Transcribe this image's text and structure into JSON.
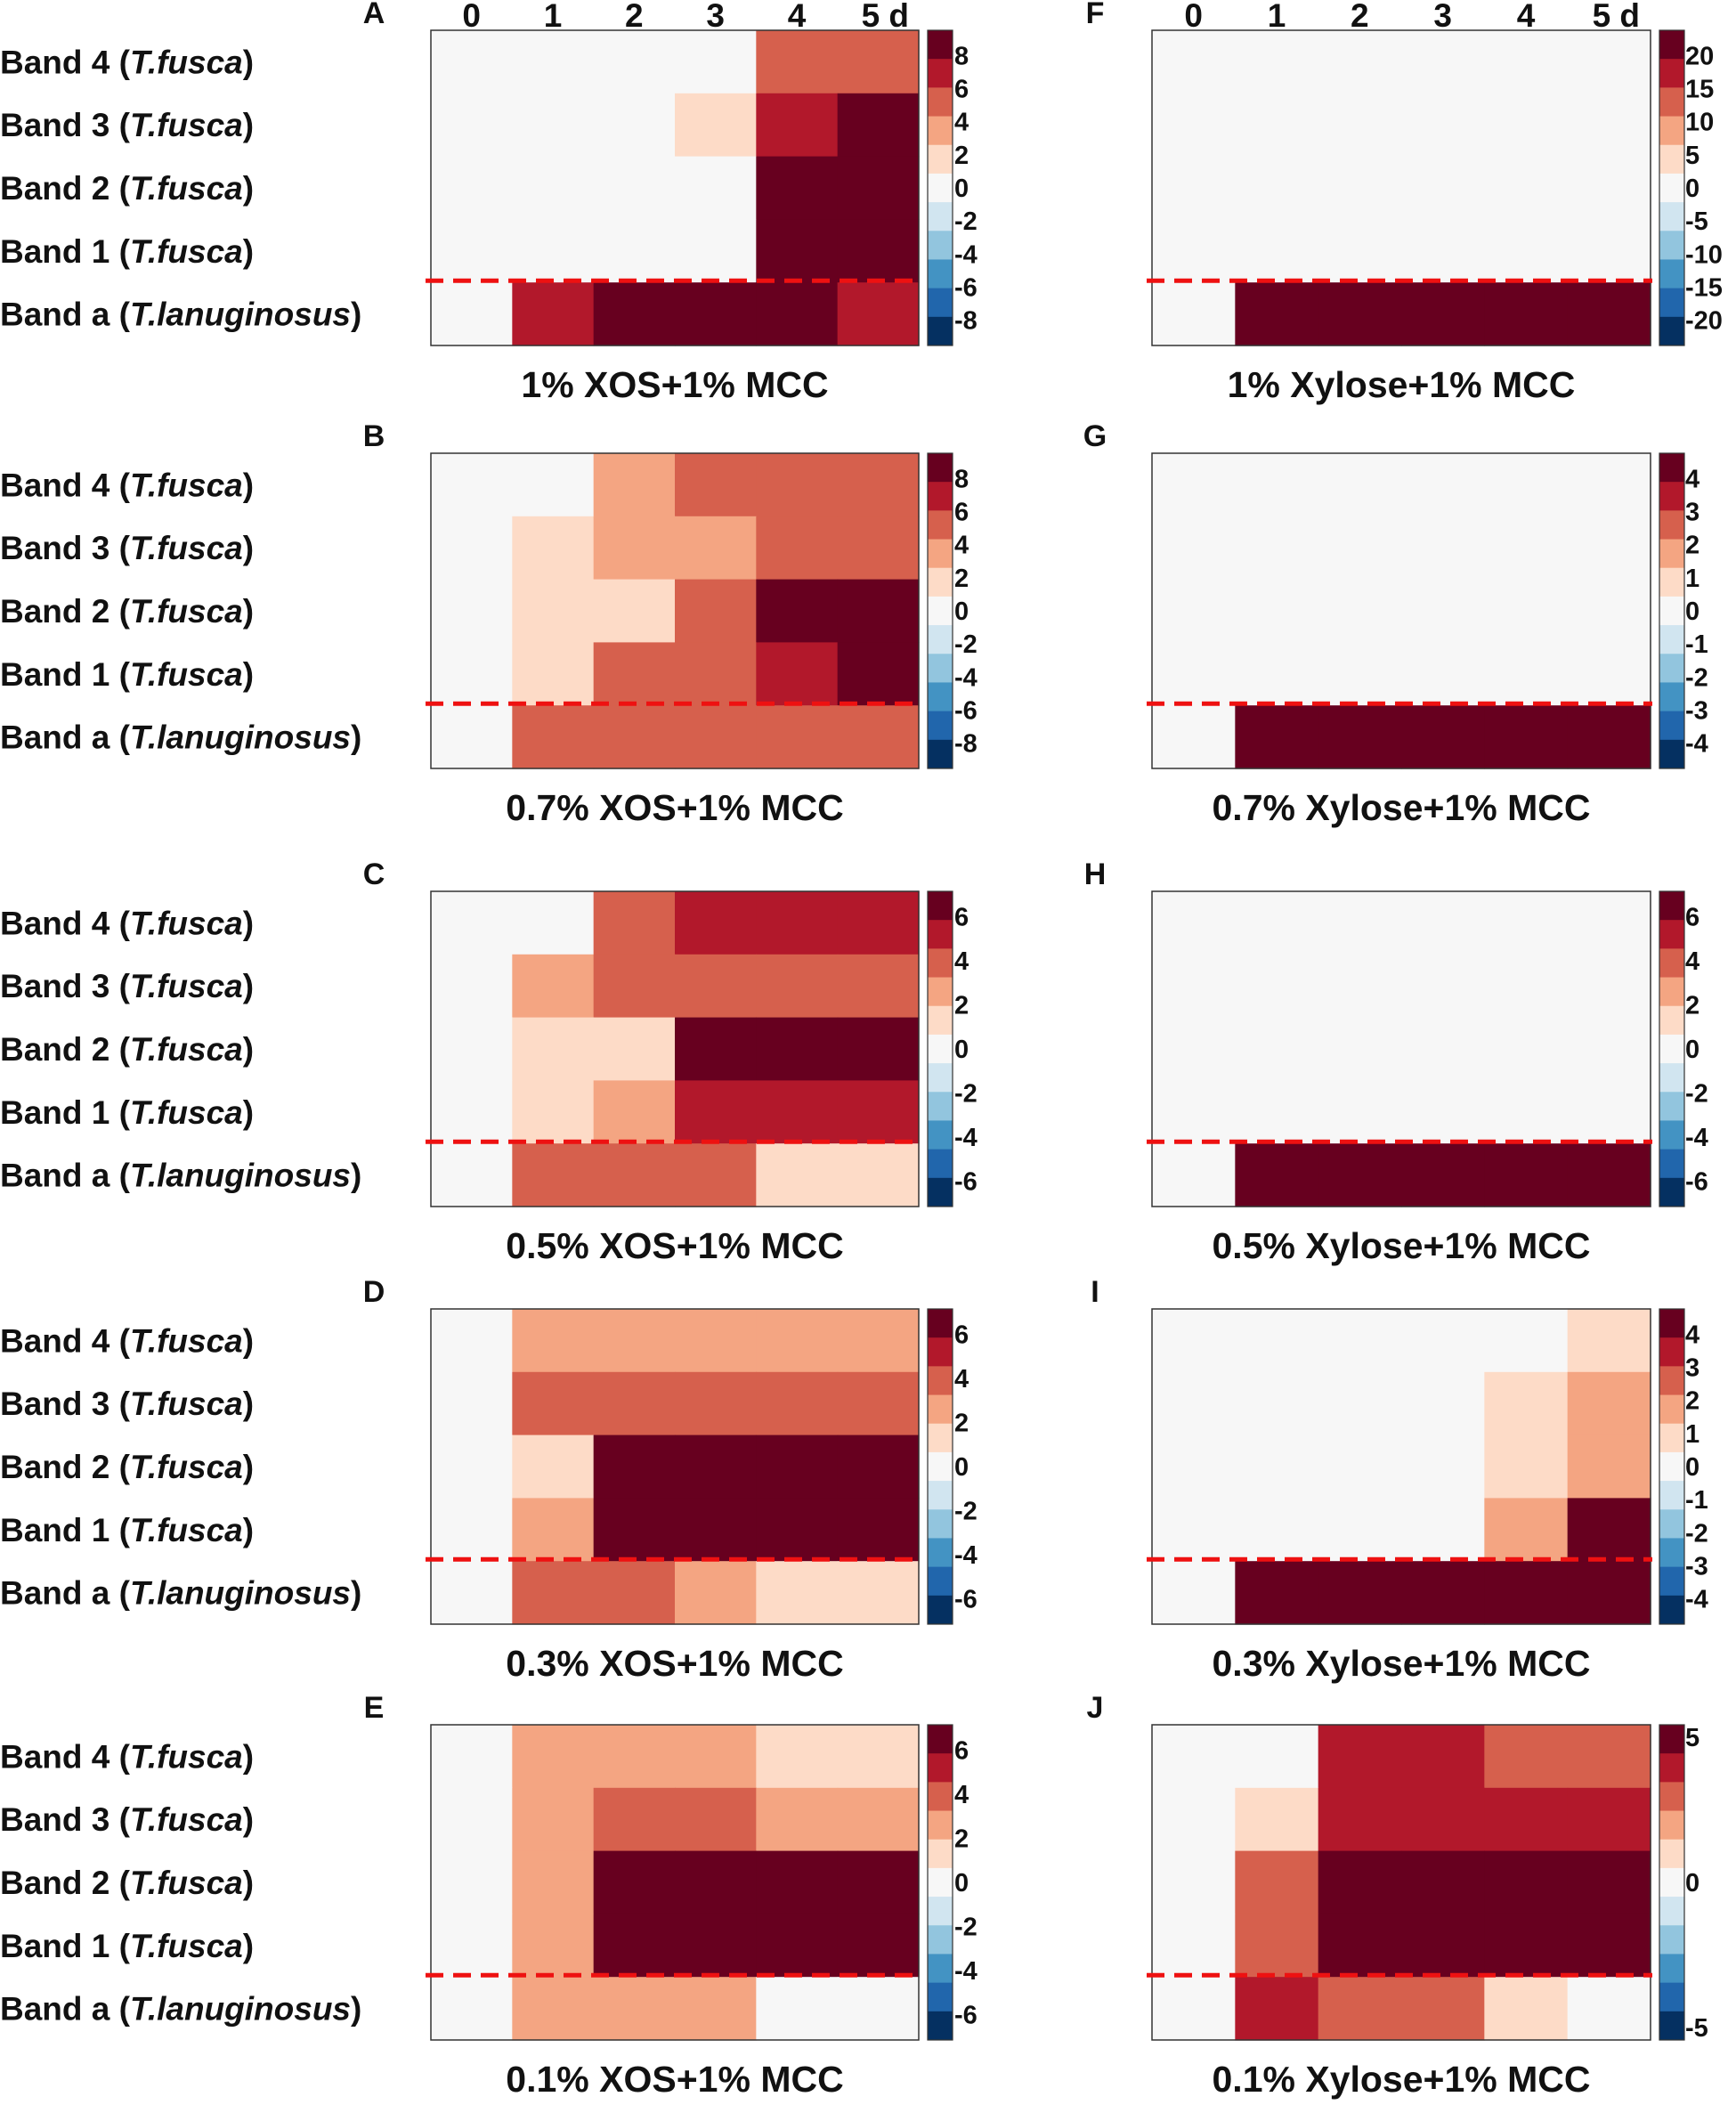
{
  "band_labels": [
    {
      "band": "Band 4",
      "species": "T.fusca"
    },
    {
      "band": "Band 3",
      "species": "T.fusca"
    },
    {
      "band": "Band 2",
      "species": "T.fusca"
    },
    {
      "band": "Band 1",
      "species": "T.fusca"
    },
    {
      "band": "Band a",
      "species": "T.lanuginosus"
    }
  ],
  "day_labels": [
    "0",
    "1",
    "2",
    "3",
    "4",
    "5 d"
  ],
  "colors": {
    "scale": [
      "#053061",
      "#2166ac",
      "#4393c3",
      "#92c5de",
      "#d1e5f0",
      "#f7f7f7",
      "#fddbc7",
      "#f4a582",
      "#d6604d",
      "#b2182b",
      "#67001f"
    ],
    "neutral": "#f7f7f7",
    "divider": "#ee1111"
  },
  "chart_data": [
    {
      "panel": "A",
      "type": "heatmap",
      "xlabel": "1% XOS+1% MCC",
      "colorbar_ticks": [
        "8",
        "6",
        "4",
        "2",
        "0",
        "-2",
        "-4",
        "-6",
        "-8"
      ],
      "vmax": 8,
      "values": [
        [
          0,
          0,
          0,
          0,
          4,
          4
        ],
        [
          0,
          0,
          0,
          2,
          6,
          8
        ],
        [
          0,
          0,
          0,
          0,
          8,
          8
        ],
        [
          0,
          0,
          0,
          0,
          8,
          8
        ],
        [
          0,
          6,
          8,
          8,
          8,
          6
        ]
      ]
    },
    {
      "panel": "B",
      "type": "heatmap",
      "xlabel": "0.7% XOS+1% MCC",
      "colorbar_ticks": [
        "8",
        "6",
        "4",
        "2",
        "0",
        "-2",
        "-4",
        "-6",
        "-8"
      ],
      "vmax": 8,
      "values": [
        [
          0,
          0,
          3,
          4,
          4,
          4
        ],
        [
          0,
          2,
          3,
          3,
          4,
          4
        ],
        [
          0,
          2,
          2,
          4,
          8,
          8
        ],
        [
          0,
          2,
          4,
          4,
          6,
          8
        ],
        [
          0,
          4,
          4,
          4,
          4,
          4
        ]
      ]
    },
    {
      "panel": "C",
      "type": "heatmap",
      "xlabel": "0.5% XOS+1% MCC",
      "colorbar_ticks": [
        "6",
        "4",
        "2",
        "0",
        "-2",
        "-4",
        "-6"
      ],
      "vmax": 7,
      "values": [
        [
          0,
          0,
          4,
          6,
          6,
          6
        ],
        [
          0,
          3,
          4,
          4,
          4,
          4
        ],
        [
          0,
          2,
          2,
          7,
          7,
          7
        ],
        [
          0,
          2,
          3,
          6,
          6,
          6
        ],
        [
          0,
          4,
          4,
          4,
          2,
          2
        ]
      ]
    },
    {
      "panel": "D",
      "type": "heatmap",
      "xlabel": "0.3% XOS+1% MCC",
      "colorbar_ticks": [
        "6",
        "4",
        "2",
        "0",
        "-2",
        "-4",
        "-6"
      ],
      "vmax": 7,
      "values": [
        [
          0,
          3,
          3,
          3,
          3,
          3
        ],
        [
          0,
          4,
          4,
          4,
          4,
          4
        ],
        [
          0,
          2,
          7,
          7,
          7,
          7
        ],
        [
          0,
          3,
          7,
          7,
          7,
          7
        ],
        [
          0,
          4,
          4,
          3,
          2,
          2
        ]
      ]
    },
    {
      "panel": "E",
      "type": "heatmap",
      "xlabel": "0.1% XOS+1% MCC",
      "colorbar_ticks": [
        "6",
        "4",
        "2",
        "0",
        "-2",
        "-4",
        "-6"
      ],
      "vmax": 7,
      "values": [
        [
          0,
          3,
          3,
          3,
          2,
          2
        ],
        [
          0,
          3,
          4,
          4,
          3,
          3
        ],
        [
          0,
          3,
          7,
          7,
          7,
          7
        ],
        [
          0,
          3,
          7,
          7,
          7,
          7
        ],
        [
          0,
          3,
          3,
          3,
          0,
          0
        ]
      ]
    },
    {
      "panel": "F",
      "type": "heatmap",
      "xlabel": "1% Xylose+1% MCC",
      "colorbar_ticks": [
        "20",
        "15",
        "10",
        "5",
        "0",
        "-5",
        "-10",
        "-15",
        "-20"
      ],
      "vmax": 20,
      "values": [
        [
          0,
          0,
          0,
          0,
          0,
          0
        ],
        [
          0,
          0,
          0,
          0,
          0,
          0
        ],
        [
          0,
          0,
          0,
          0,
          0,
          0
        ],
        [
          0,
          0,
          0,
          0,
          0,
          0
        ],
        [
          0,
          20,
          20,
          20,
          20,
          20
        ]
      ]
    },
    {
      "panel": "G",
      "type": "heatmap",
      "xlabel": "0.7% Xylose+1% MCC",
      "colorbar_ticks": [
        "4",
        "3",
        "2",
        "1",
        "0",
        "-1",
        "-2",
        "-3",
        "-4"
      ],
      "vmax": 4.5,
      "values": [
        [
          0,
          0,
          0,
          0,
          0,
          0
        ],
        [
          0,
          0,
          0,
          0,
          0,
          0
        ],
        [
          0,
          0,
          0,
          0,
          0,
          0
        ],
        [
          0,
          0,
          0,
          0,
          0,
          0
        ],
        [
          0,
          4.5,
          4.5,
          4.5,
          4.5,
          4.5
        ]
      ]
    },
    {
      "panel": "H",
      "type": "heatmap",
      "xlabel": "0.5% Xylose+1% MCC",
      "colorbar_ticks": [
        "6",
        "4",
        "2",
        "0",
        "-2",
        "-4",
        "-6"
      ],
      "vmax": 7,
      "values": [
        [
          0,
          0,
          0,
          0,
          0,
          0
        ],
        [
          0,
          0,
          0,
          0,
          0,
          0
        ],
        [
          0,
          0,
          0,
          0,
          0,
          0
        ],
        [
          0,
          0,
          0,
          0,
          0,
          0
        ],
        [
          0,
          7,
          7,
          7,
          7,
          7
        ]
      ]
    },
    {
      "panel": "I",
      "type": "heatmap",
      "xlabel": "0.3% Xylose+1% MCC",
      "colorbar_ticks": [
        "4",
        "3",
        "2",
        "1",
        "0",
        "-1",
        "-2",
        "-3",
        "-4"
      ],
      "vmax": 4.5,
      "values": [
        [
          0,
          0,
          0,
          0,
          0,
          1
        ],
        [
          0,
          0,
          0,
          0,
          1,
          2
        ],
        [
          0,
          0,
          0,
          0,
          1,
          1.5
        ],
        [
          0,
          0,
          0,
          0,
          1.5,
          4.5
        ],
        [
          0,
          4.5,
          4.5,
          4.5,
          4.5,
          4.5
        ]
      ]
    },
    {
      "panel": "J",
      "type": "heatmap",
      "xlabel": "0.1% Xylose+1% MCC",
      "colorbar_ticks": [
        "5",
        "0",
        "-5"
      ],
      "vmax": 5.5,
      "values": [
        [
          0,
          0,
          4.5,
          4.5,
          3.5,
          3.5
        ],
        [
          0,
          1,
          4.5,
          4.5,
          4.5,
          4.5
        ],
        [
          0,
          3.5,
          5.5,
          5.5,
          5.5,
          5.5
        ],
        [
          0,
          3.5,
          5.5,
          5.5,
          5.5,
          5.5
        ],
        [
          0,
          4.5,
          3.5,
          3.5,
          1,
          0
        ]
      ]
    }
  ]
}
